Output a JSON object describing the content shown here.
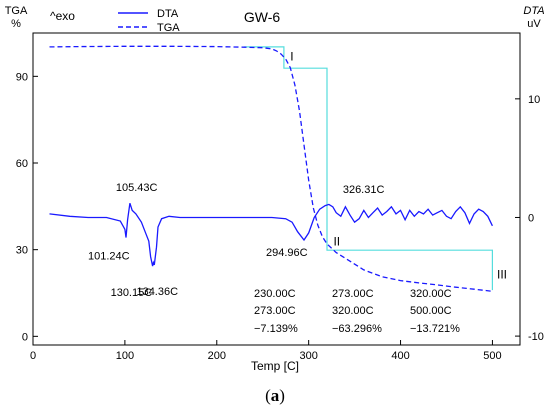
{
  "chart_data": {
    "type": "line",
    "title": "GW-6",
    "xlabel": "Temp  [C]",
    "xlim": [
      0,
      530
    ],
    "x_ticks": [
      0,
      100,
      200,
      300,
      400,
      500
    ],
    "left_axis": {
      "label_top": "TGA",
      "label_unit": "%",
      "ylim": [
        -3,
        105
      ],
      "ticks": [
        0,
        30,
        60,
        90
      ]
    },
    "right_axis": {
      "label_top": "DTA",
      "label_unit": "uV",
      "ylim": [
        -10.75,
        15.55
      ],
      "ticks": [
        -10,
        0,
        10
      ]
    },
    "exo_label": "^exo",
    "legend": {
      "position": "top-left",
      "entries": [
        {
          "name": "DTA",
          "style": "solid"
        },
        {
          "name": "TGA",
          "style": "dashed"
        }
      ]
    },
    "series": [
      {
        "name": "DTA",
        "axis": "right",
        "color": "#1a1aff",
        "x": [
          18,
          40,
          60,
          80,
          95,
          100,
          101.24,
          103,
          105.43,
          108,
          112,
          118,
          122,
          126,
          128,
          130.15,
          131,
          132,
          134.36,
          136,
          140,
          148,
          160,
          180,
          200,
          220,
          240,
          260,
          275,
          282,
          288,
          294.96,
          300,
          306,
          312,
          318,
          322,
          326.31,
          330,
          335,
          340,
          345,
          350,
          355,
          360,
          365,
          370,
          375,
          380,
          385,
          390,
          395,
          400,
          405,
          410,
          415,
          420,
          425,
          430,
          435,
          440,
          445,
          450,
          455,
          460,
          465,
          470,
          475,
          480,
          485,
          490,
          495,
          500
        ],
        "y": [
          0.3,
          0.1,
          0.0,
          0.0,
          -0.3,
          -1.0,
          -1.7,
          -0.2,
          1.2,
          0.6,
          0.3,
          -0.4,
          -1.2,
          -2.0,
          -3.3,
          -4.1,
          -3.8,
          -4.0,
          -2.5,
          -0.8,
          -0.1,
          0.1,
          0.0,
          0.0,
          0.0,
          0.0,
          0.0,
          0.0,
          -0.1,
          -0.4,
          -1.2,
          -1.9,
          -1.3,
          0.0,
          0.7,
          1.0,
          1.1,
          0.9,
          0.4,
          0.1,
          0.9,
          0.2,
          -0.4,
          -0.1,
          0.6,
          0.0,
          0.4,
          0.8,
          0.2,
          0.5,
          0.9,
          0.3,
          0.6,
          -0.2,
          0.6,
          0.1,
          0.5,
          0.3,
          0.7,
          0.2,
          0.4,
          0.6,
          0.1,
          -0.1,
          0.5,
          0.9,
          0.4,
          -0.5,
          0.3,
          0.7,
          0.5,
          0.1,
          -0.7
        ]
      },
      {
        "name": "TGA",
        "axis": "left",
        "color": "#1a1aff",
        "x": [
          18,
          50,
          100,
          150,
          200,
          230,
          250,
          260,
          265,
          270,
          275,
          280,
          285,
          290,
          295,
          300,
          305,
          310,
          315,
          320,
          330,
          340,
          360,
          380,
          400,
          420,
          440,
          460,
          480,
          500
        ],
        "y": [
          100.2,
          100.3,
          100.4,
          100.4,
          100.3,
          100.1,
          99.9,
          99.5,
          98.8,
          97.7,
          96.0,
          93.0,
          87.0,
          78.0,
          66.0,
          54.0,
          44.5,
          38.5,
          34.5,
          32.0,
          29.0,
          27.0,
          23.0,
          20.6,
          19.3,
          18.5,
          17.8,
          17.0,
          16.3,
          15.6
        ]
      }
    ],
    "step_line": {
      "color": "#55dddd",
      "x": [
        230,
        273,
        273,
        320,
        320,
        500,
        500
      ],
      "y": [
        100.2,
        100.2,
        92.8,
        92.8,
        29.8,
        29.8,
        16.0
      ]
    },
    "annotations": [
      {
        "text": "105.43C",
        "x": 105.43,
        "y": 1.2,
        "axis": "right"
      },
      {
        "text": "101.24C",
        "x": 101.24,
        "y": -1.7,
        "axis": "right"
      },
      {
        "text": "130.15C",
        "x": 130.15,
        "y": -4.1,
        "axis": "right"
      },
      {
        "text": "134.36C",
        "x": 134.36,
        "y": -4.0,
        "axis": "right"
      },
      {
        "text": "294.96C",
        "x": 294.96,
        "y": -1.9,
        "axis": "right"
      },
      {
        "text": "326.31C",
        "x": 326.31,
        "y": 0.9,
        "axis": "right"
      }
    ],
    "step_labels": [
      "I",
      "II",
      "III"
    ],
    "table": {
      "columns": [
        [
          "230.00C",
          "273.00C",
          "−7.139%"
        ],
        [
          "273.00C",
          "320.00C",
          "−63.296%"
        ],
        [
          "320.00C",
          "500.00C",
          "−13.721%"
        ]
      ]
    }
  },
  "caption": {
    "open": "(",
    "letter": "a",
    "close": ")"
  }
}
